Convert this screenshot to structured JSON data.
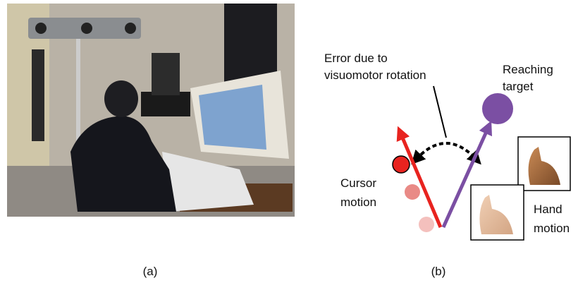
{
  "figure": {
    "panel_a": {
      "label": "(a)"
    },
    "panel_b": {
      "label": "(b)",
      "error_label": [
        "Error due to",
        "visuomotor rotation"
      ],
      "target_label": [
        "Reaching",
        "target"
      ],
      "cursor_label": [
        "Cursor",
        "motion"
      ],
      "hand_label": [
        "Hand",
        "motion"
      ]
    }
  }
}
